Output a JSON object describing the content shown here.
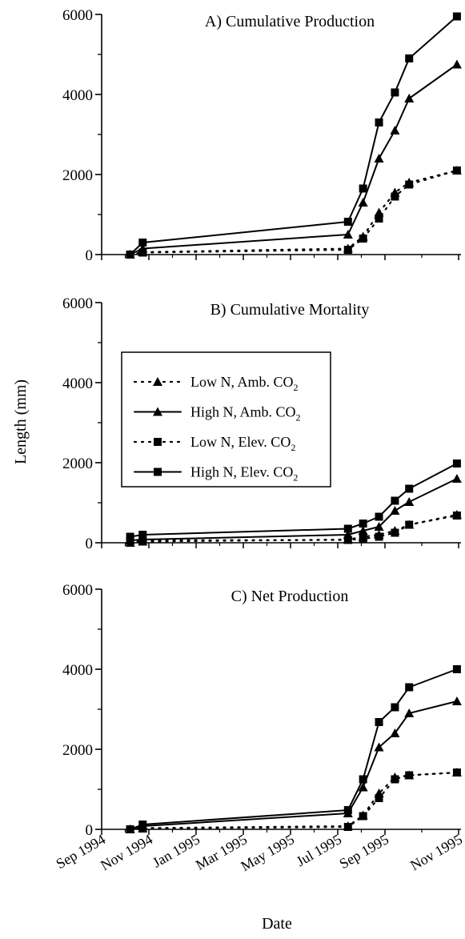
{
  "chart_data": {
    "type": "line",
    "ylabel": "Length (mm)",
    "xlabel": "Date",
    "x_tick_labels": [
      "Sep 1994",
      "Nov 1994",
      "Jan 1995",
      "Mar 1995",
      "May 1995",
      "Jul 1995",
      "Sep 1995",
      "Nov 1995"
    ],
    "x_dates": [
      "1994-10-05",
      "1994-10-20",
      "1995-06-22",
      "1995-07-10",
      "1995-07-29",
      "1995-08-17",
      "1995-09-03",
      "1995-10-30"
    ],
    "ylim": [
      0,
      6000
    ],
    "y_ticks": [
      0,
      2000,
      4000,
      6000
    ],
    "legend": {
      "placement": "inside panel B, upper left",
      "entries": [
        {
          "label": "Low N, Amb. CO",
          "subscript": "2",
          "line": "dotted",
          "marker": "triangle"
        },
        {
          "label": "High N, Amb. CO",
          "subscript": "2",
          "line": "solid",
          "marker": "triangle"
        },
        {
          "label": "Low N, Elev. CO",
          "subscript": "2",
          "line": "dotted",
          "marker": "square"
        },
        {
          "label": "High N, Elev. CO",
          "subscript": "2",
          "line": "solid",
          "marker": "square"
        }
      ]
    },
    "panels": [
      {
        "title": "A) Cumulative Production",
        "series": [
          {
            "name": "Low N, Amb. CO2",
            "values": [
              0,
              60,
              150,
              450,
              1050,
              1550,
              1800,
              2100
            ]
          },
          {
            "name": "High N, Amb. CO2",
            "values": [
              0,
              150,
              500,
              1300,
              2400,
              3100,
              3900,
              4750
            ]
          },
          {
            "name": "Low N, Elev. CO2",
            "values": [
              0,
              50,
              120,
              400,
              900,
              1450,
              1750,
              2100
            ]
          },
          {
            "name": "High N, Elev. CO2",
            "values": [
              0,
              300,
              820,
              1650,
              3300,
              4050,
              4900,
              5950
            ]
          }
        ]
      },
      {
        "title": "B) Cumulative Mortality",
        "series": [
          {
            "name": "Low N, Amb. CO2",
            "values": [
              0,
              30,
              80,
              150,
              200,
              300,
              450,
              700
            ]
          },
          {
            "name": "High N, Amb. CO2",
            "values": [
              60,
              80,
              200,
              300,
              400,
              800,
              1020,
              1600
            ]
          },
          {
            "name": "Low N, Elev. CO2",
            "values": [
              50,
              60,
              70,
              100,
              150,
              250,
              450,
              680
            ]
          },
          {
            "name": "High N, Elev. CO2",
            "values": [
              150,
              200,
              350,
              480,
              650,
              1050,
              1350,
              1980
            ]
          }
        ]
      },
      {
        "title": "C) Net Production",
        "series": [
          {
            "name": "Low N, Amb. CO2",
            "values": [
              0,
              30,
              80,
              350,
              900,
              1300,
              1350,
              1420
            ]
          },
          {
            "name": "High N, Amb. CO2",
            "values": [
              0,
              80,
              400,
              1050,
              2050,
              2400,
              2900,
              3200
            ]
          },
          {
            "name": "Low N, Elev. CO2",
            "values": [
              0,
              20,
              60,
              330,
              780,
              1250,
              1350,
              1420
            ]
          },
          {
            "name": "High N, Elev. CO2",
            "values": [
              0,
              120,
              480,
              1250,
              2680,
              3050,
              3550,
              4000
            ]
          }
        ]
      }
    ]
  }
}
